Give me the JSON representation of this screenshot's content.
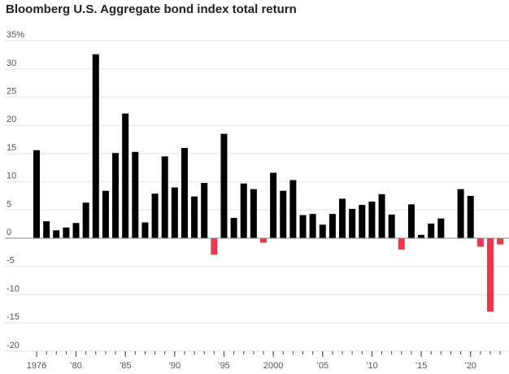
{
  "chart_data": {
    "type": "bar",
    "title": "Bloomberg U.S. Aggregate bond index total return",
    "xlabel": "",
    "ylabel": "",
    "ylim": [
      -20,
      35
    ],
    "yticks": [
      35,
      30,
      25,
      20,
      15,
      10,
      5,
      0,
      -5,
      -10,
      -15,
      -20
    ],
    "ytick_labels": [
      "35%",
      "30",
      "25",
      "20",
      "15",
      "10",
      "5",
      "0",
      "-5",
      "-10",
      "-15",
      "-20"
    ],
    "xtick_labels": [
      {
        "year": 1976,
        "label": "1976"
      },
      {
        "year": 1980,
        "label": "’80"
      },
      {
        "year": 1985,
        "label": "’85"
      },
      {
        "year": 1990,
        "label": "’90"
      },
      {
        "year": 1995,
        "label": "’95"
      },
      {
        "year": 2000,
        "label": "2000"
      },
      {
        "year": 2005,
        "label": "’05"
      },
      {
        "year": 2010,
        "label": "’10"
      },
      {
        "year": 2015,
        "label": "’15"
      },
      {
        "year": 2020,
        "label": "’20"
      }
    ],
    "grid": true,
    "colors": {
      "positive": "#000000",
      "negative": "#e8394a"
    },
    "categories": [
      1976,
      1977,
      1978,
      1979,
      1980,
      1981,
      1982,
      1983,
      1984,
      1985,
      1986,
      1987,
      1988,
      1989,
      1990,
      1991,
      1992,
      1993,
      1994,
      1995,
      1996,
      1997,
      1998,
      1999,
      2000,
      2001,
      2002,
      2003,
      2004,
      2005,
      2006,
      2007,
      2008,
      2009,
      2010,
      2011,
      2012,
      2013,
      2014,
      2015,
      2016,
      2017,
      2018,
      2019,
      2020,
      2021,
      2022,
      2023
    ],
    "values": [
      15.6,
      3.0,
      1.4,
      1.9,
      2.7,
      6.3,
      32.6,
      8.4,
      15.1,
      22.1,
      15.3,
      2.8,
      7.9,
      14.5,
      9.0,
      16.0,
      7.4,
      9.8,
      -2.9,
      18.5,
      3.6,
      9.7,
      8.7,
      -0.8,
      11.6,
      8.4,
      10.3,
      4.1,
      4.3,
      2.4,
      4.3,
      7.0,
      5.2,
      5.9,
      6.5,
      7.8,
      4.2,
      -2.0,
      6.0,
      0.6,
      2.6,
      3.5,
      0.0,
      8.7,
      7.5,
      -1.5,
      -13.0,
      -1.1
    ]
  }
}
